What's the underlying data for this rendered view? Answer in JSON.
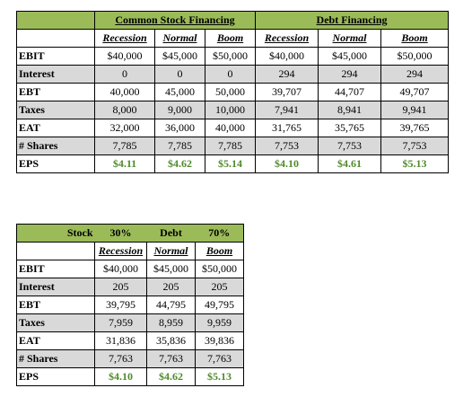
{
  "table1": {
    "group_headers": [
      "Common Stock Financing",
      "Debt Financing"
    ],
    "scenarios": [
      "Recession",
      "Normal",
      "Boom"
    ],
    "rows": [
      {
        "label": "EBIT",
        "values": [
          "$40,000",
          "$45,000",
          "$50,000",
          "$40,000",
          "$45,000",
          "$50,000"
        ]
      },
      {
        "label": "Interest",
        "values": [
          "0",
          "0",
          "0",
          "294",
          "294",
          "294"
        ]
      },
      {
        "label": "EBT",
        "values": [
          "40,000",
          "45,000",
          "50,000",
          "39,707",
          "44,707",
          "49,707"
        ]
      },
      {
        "label": "Taxes",
        "values": [
          "8,000",
          "9,000",
          "10,000",
          "7,941",
          "8,941",
          "9,941"
        ]
      },
      {
        "label": "EAT",
        "values": [
          "32,000",
          "36,000",
          "40,000",
          "31,765",
          "35,765",
          "39,765"
        ]
      },
      {
        "label": "# Shares",
        "values": [
          "7,785",
          "7,785",
          "7,785",
          "7,753",
          "7,753",
          "7,753"
        ]
      },
      {
        "label": "EPS",
        "values": [
          "$4.11",
          "$4.62",
          "$5.14",
          "$4.10",
          "$4.61",
          "$5.13"
        ]
      }
    ]
  },
  "table2": {
    "stock_label": "Stock",
    "stock_pct": "30%",
    "debt_label": "Debt",
    "debt_pct": "70%",
    "scenarios": [
      "Recession",
      "Normal",
      "Boom"
    ],
    "rows": [
      {
        "label": "EBIT",
        "values": [
          "$40,000",
          "$45,000",
          "$50,000"
        ]
      },
      {
        "label": "Interest",
        "values": [
          "205",
          "205",
          "205"
        ]
      },
      {
        "label": "EBT",
        "values": [
          "39,795",
          "44,795",
          "49,795"
        ]
      },
      {
        "label": "Taxes",
        "values": [
          "7,959",
          "8,959",
          "9,959"
        ]
      },
      {
        "label": "EAT",
        "values": [
          "31,836",
          "35,836",
          "39,836"
        ]
      },
      {
        "label": "# Shares",
        "values": [
          "7,763",
          "7,763",
          "7,763"
        ]
      },
      {
        "label": "EPS",
        "values": [
          "$4.10",
          "$4.62",
          "$5.13"
        ]
      }
    ]
  },
  "colors": {
    "header_green": "#9bbb59",
    "row_shade": "#d9d9d9",
    "eps_green": "#4f8a2a"
  }
}
